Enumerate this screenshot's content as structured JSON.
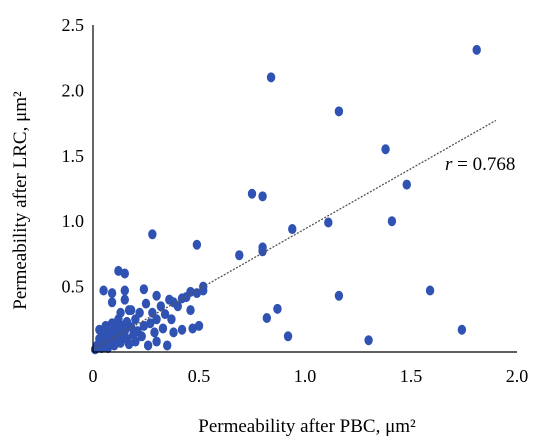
{
  "chart_data": {
    "type": "scatter",
    "title": "",
    "xlabel": "Permeability after PBC, μm²",
    "ylabel": "Permeability after LRC, μm²",
    "xlim": [
      0,
      2.0
    ],
    "ylim": [
      0,
      2.5
    ],
    "x_ticks": [
      "0",
      "0.5",
      "1.0",
      "1.5",
      "2.0"
    ],
    "y_ticks": [
      "0.5",
      "1.0",
      "1.5",
      "2.0",
      "2.5"
    ],
    "grid": false,
    "legend": "none",
    "colors": {
      "points": "#2f52b3",
      "trendline": "#555555",
      "axis": "#000000"
    },
    "annotation": {
      "prefix": "r",
      "text": " = 0.768"
    },
    "trendline": {
      "x": [
        0,
        1.9
      ],
      "y": [
        0.02,
        1.77
      ],
      "style": "dashed"
    },
    "series": [
      {
        "points": [
          [
            0.01,
            0.02
          ],
          [
            0.02,
            0.05
          ],
          [
            0.03,
            0.1
          ],
          [
            0.03,
            0.17
          ],
          [
            0.04,
            0.03
          ],
          [
            0.05,
            0.08
          ],
          [
            0.05,
            0.13
          ],
          [
            0.06,
            0.05
          ],
          [
            0.06,
            0.2
          ],
          [
            0.07,
            0.1
          ],
          [
            0.07,
            0.03
          ],
          [
            0.08,
            0.15
          ],
          [
            0.08,
            0.07
          ],
          [
            0.09,
            0.22
          ],
          [
            0.09,
            0.38
          ],
          [
            0.1,
            0.12
          ],
          [
            0.1,
            0.05
          ],
          [
            0.11,
            0.18
          ],
          [
            0.11,
            0.09
          ],
          [
            0.12,
            0.25
          ],
          [
            0.12,
            0.14
          ],
          [
            0.13,
            0.07
          ],
          [
            0.13,
            0.3
          ],
          [
            0.14,
            0.2
          ],
          [
            0.14,
            0.11
          ],
          [
            0.15,
            0.16
          ],
          [
            0.15,
            0.4
          ],
          [
            0.16,
            0.1
          ],
          [
            0.16,
            0.23
          ],
          [
            0.17,
            0.06
          ],
          [
            0.18,
            0.19
          ],
          [
            0.18,
            0.32
          ],
          [
            0.19,
            0.13
          ],
          [
            0.2,
            0.25
          ],
          [
            0.2,
            0.08
          ],
          [
            0.21,
            0.16
          ],
          [
            0.22,
            0.3
          ],
          [
            0.23,
            0.12
          ],
          [
            0.24,
            0.2
          ],
          [
            0.25,
            0.37
          ],
          [
            0.26,
            0.05
          ],
          [
            0.27,
            0.22
          ],
          [
            0.28,
            0.3
          ],
          [
            0.29,
            0.15
          ],
          [
            0.3,
            0.25
          ],
          [
            0.3,
            0.08
          ],
          [
            0.32,
            0.35
          ],
          [
            0.33,
            0.18
          ],
          [
            0.34,
            0.29
          ],
          [
            0.35,
            0.05
          ],
          [
            0.36,
            0.4
          ],
          [
            0.37,
            0.25
          ],
          [
            0.38,
            0.15
          ],
          [
            0.4,
            0.35
          ],
          [
            0.42,
            0.17
          ],
          [
            0.44,
            0.42
          ],
          [
            0.46,
            0.32
          ],
          [
            0.47,
            0.18
          ],
          [
            0.49,
            0.45
          ],
          [
            0.5,
            0.2
          ],
          [
            0.05,
            0.47
          ],
          [
            0.09,
            0.45
          ],
          [
            0.12,
            0.62
          ],
          [
            0.15,
            0.6
          ],
          [
            0.15,
            0.47
          ],
          [
            0.17,
            0.32
          ],
          [
            0.24,
            0.48
          ],
          [
            0.28,
            0.9
          ],
          [
            0.3,
            0.43
          ],
          [
            0.38,
            0.38
          ],
          [
            0.42,
            0.41
          ],
          [
            0.46,
            0.46
          ],
          [
            0.49,
            0.82
          ],
          [
            0.52,
            0.5
          ],
          [
            0.52,
            0.47
          ],
          [
            0.69,
            0.74
          ],
          [
            0.75,
            1.21
          ],
          [
            0.8,
            1.19
          ],
          [
            0.8,
            0.8
          ],
          [
            0.8,
            0.77
          ],
          [
            0.84,
            2.1
          ],
          [
            0.94,
            0.94
          ],
          [
            1.11,
            0.99
          ],
          [
            1.16,
            1.84
          ],
          [
            1.38,
            1.55
          ],
          [
            1.41,
            1.0
          ],
          [
            1.48,
            1.28
          ],
          [
            1.81,
            2.31
          ],
          [
            0.82,
            0.26
          ],
          [
            0.87,
            0.33
          ],
          [
            0.92,
            0.12
          ],
          [
            1.16,
            0.43
          ],
          [
            1.3,
            0.09
          ],
          [
            1.59,
            0.47
          ],
          [
            1.74,
            0.17
          ]
        ]
      }
    ]
  }
}
